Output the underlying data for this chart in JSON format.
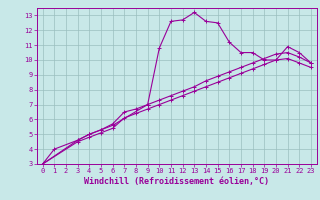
{
  "xlabel": "Windchill (Refroidissement éolien,°C)",
  "background_color": "#c8e8e8",
  "grid_color": "#9bbfbf",
  "line_color": "#990099",
  "xlim": [
    -0.5,
    23.5
  ],
  "ylim": [
    3,
    13.5
  ],
  "xticks": [
    0,
    1,
    2,
    3,
    4,
    5,
    6,
    7,
    8,
    9,
    10,
    11,
    12,
    13,
    14,
    15,
    16,
    17,
    18,
    19,
    20,
    21,
    22,
    23
  ],
  "yticks": [
    3,
    4,
    5,
    6,
    7,
    8,
    9,
    10,
    11,
    12,
    13
  ],
  "line1_x": [
    0,
    1,
    3,
    4,
    5,
    6,
    9,
    10,
    11,
    12,
    13,
    14,
    15,
    16,
    17,
    18,
    19,
    20,
    21,
    22,
    23
  ],
  "line1_y": [
    3,
    4.0,
    4.6,
    5.0,
    5.3,
    5.6,
    7.0,
    10.8,
    12.6,
    12.7,
    13.2,
    12.6,
    12.5,
    11.2,
    10.5,
    10.5,
    10.0,
    10.0,
    10.9,
    10.5,
    9.8
  ],
  "line2_x": [
    0,
    3,
    4,
    5,
    6,
    7,
    8,
    9,
    10,
    11,
    12,
    13,
    14,
    15,
    16,
    17,
    18,
    19,
    20,
    21,
    22,
    23
  ],
  "line2_y": [
    3.0,
    4.6,
    5.0,
    5.3,
    5.7,
    6.5,
    6.7,
    7.0,
    7.3,
    7.6,
    7.9,
    8.2,
    8.6,
    8.9,
    9.2,
    9.5,
    9.8,
    10.1,
    10.4,
    10.5,
    10.2,
    9.8
  ],
  "line3_x": [
    0,
    3,
    4,
    5,
    6,
    7,
    8,
    9,
    10,
    11,
    12,
    13,
    14,
    15,
    16,
    17,
    18,
    19,
    20,
    21,
    22,
    23
  ],
  "line3_y": [
    3.0,
    4.5,
    4.8,
    5.1,
    5.4,
    6.1,
    6.4,
    6.7,
    7.0,
    7.3,
    7.6,
    7.9,
    8.2,
    8.5,
    8.8,
    9.1,
    9.4,
    9.7,
    10.0,
    10.1,
    9.8,
    9.5
  ],
  "marker": "+",
  "marker_size": 3,
  "line_width": 0.8,
  "tick_fontsize": 5.0,
  "label_fontsize": 6.0
}
